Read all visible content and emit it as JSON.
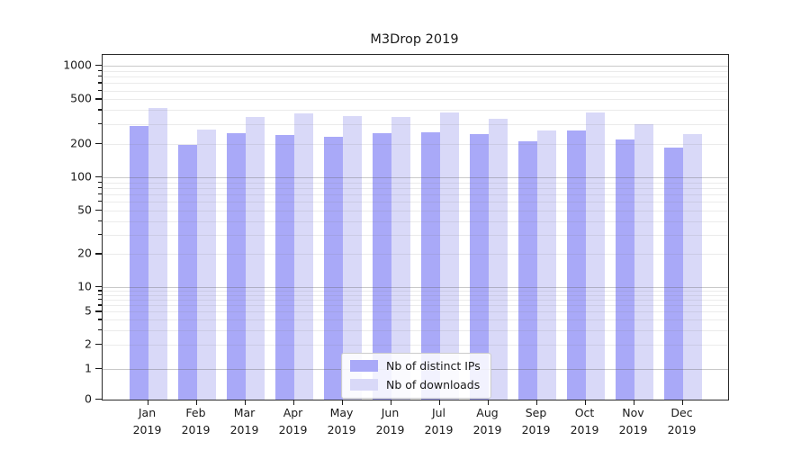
{
  "title": "M3Drop 2019",
  "accent_colors": {
    "distinct_ips_bar": "#a9a9f8",
    "downloads_bar": "#d9d9f8",
    "spine": "#2a2a2a"
  },
  "chart_data": {
    "type": "bar",
    "title": "M3Drop 2019",
    "y_scale": "symlog",
    "grid": true,
    "legend_position": "lower center",
    "categories": [
      "Jan",
      "Feb",
      "Mar",
      "Apr",
      "May",
      "Jun",
      "Jul",
      "Aug",
      "Sep",
      "Oct",
      "Nov",
      "Dec"
    ],
    "category_year": "2019",
    "series": [
      {
        "name": "Nb of distinct IPs",
        "color": "#a9a9f8",
        "values": [
          290,
          195,
          250,
          240,
          230,
          250,
          255,
          245,
          210,
          265,
          220,
          185
        ]
      },
      {
        "name": "Nb of downloads",
        "color": "#d9d9f8",
        "values": [
          420,
          270,
          350,
          375,
          355,
          350,
          380,
          335,
          265,
          380,
          300,
          245
        ]
      }
    ],
    "y_tick_labels": [
      1000,
      500,
      200,
      100,
      50,
      20,
      10,
      5,
      2,
      1,
      0
    ],
    "y_minor_ticks": [
      3,
      4,
      6,
      7,
      8,
      9,
      30,
      40,
      60,
      70,
      80,
      90,
      300,
      400,
      600,
      700,
      800,
      900
    ],
    "y_major_gridlines": [
      1,
      10,
      100,
      1000
    ],
    "ylim": [
      0,
      1300
    ]
  }
}
